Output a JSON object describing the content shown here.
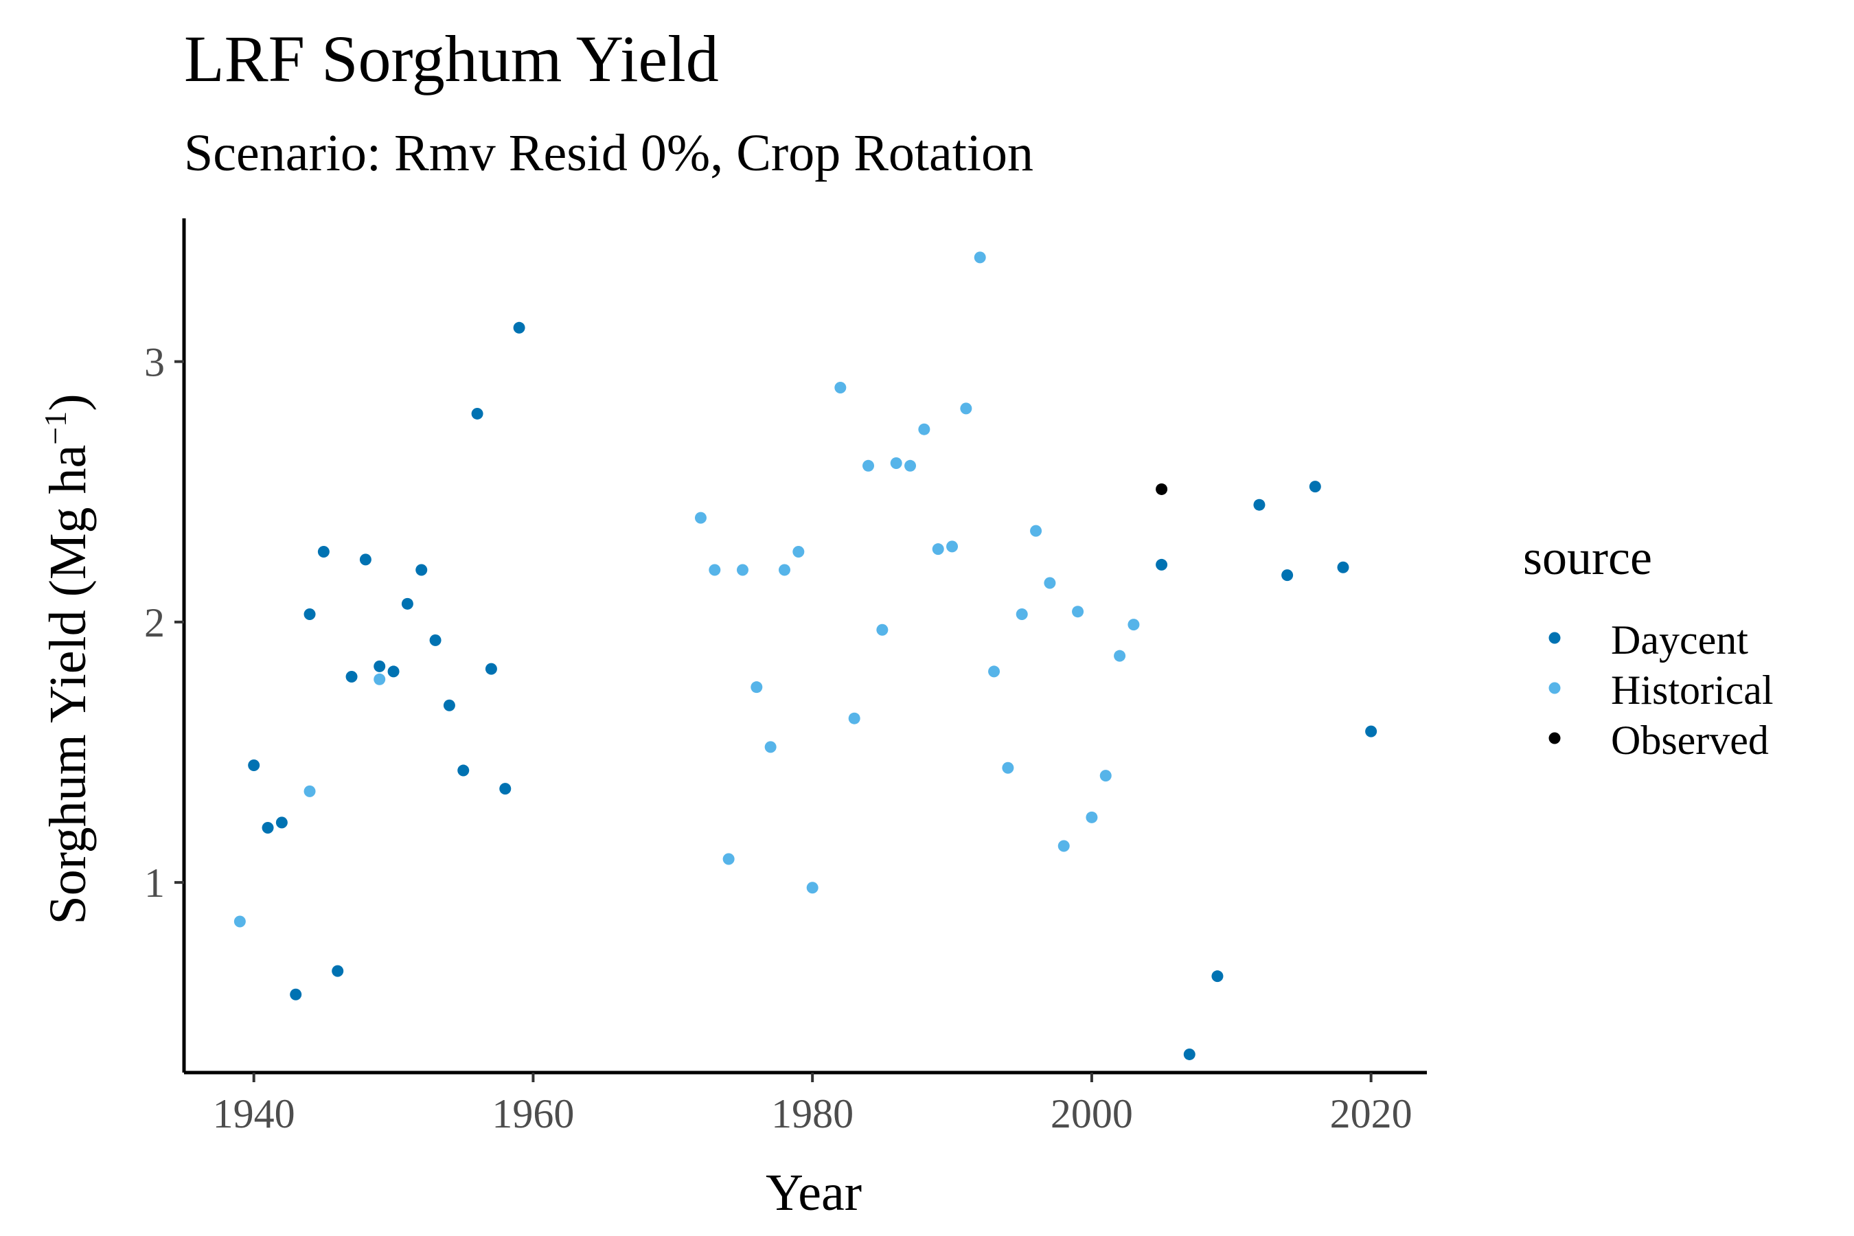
{
  "chart_data": {
    "type": "scatter",
    "title": "LRF Sorghum Yield",
    "subtitle": "Scenario: Rmv Resid 0%, Crop Rotation",
    "xlabel": "Year",
    "ylabel_main": "Sorghum Yield (Mg ha",
    "ylabel_sup": "−1",
    "ylabel_end": ")",
    "xlim": [
      1935,
      2024
    ],
    "ylim": [
      0.27,
      3.55
    ],
    "x_ticks": [
      1940,
      1960,
      1980,
      2000,
      2020
    ],
    "y_ticks": [
      1,
      2,
      3
    ],
    "grid": false,
    "legend": {
      "title": "source",
      "position": "right"
    },
    "series": [
      {
        "name": "Daycent",
        "color": "#0072b2",
        "points": [
          [
            1940,
            1.45
          ],
          [
            1941,
            1.21
          ],
          [
            1942,
            1.23
          ],
          [
            1943,
            0.57
          ],
          [
            1944,
            2.03
          ],
          [
            1945,
            2.27
          ],
          [
            1946,
            0.66
          ],
          [
            1947,
            1.79
          ],
          [
            1948,
            2.24
          ],
          [
            1949,
            1.83
          ],
          [
            1950,
            1.81
          ],
          [
            1951,
            2.07
          ],
          [
            1952,
            2.2
          ],
          [
            1953,
            1.93
          ],
          [
            1954,
            1.68
          ],
          [
            1955,
            1.43
          ],
          [
            1956,
            2.8
          ],
          [
            1957,
            1.82
          ],
          [
            1958,
            1.36
          ],
          [
            1959,
            3.13
          ],
          [
            2005,
            2.22
          ],
          [
            2007,
            0.34
          ],
          [
            2009,
            0.64
          ],
          [
            2012,
            2.45
          ],
          [
            2014,
            2.18
          ],
          [
            2016,
            2.52
          ],
          [
            2018,
            2.21
          ],
          [
            2020,
            1.58
          ]
        ]
      },
      {
        "name": "Historical",
        "color": "#56b4e9",
        "points": [
          [
            1939,
            0.85
          ],
          [
            1944,
            1.35
          ],
          [
            1949,
            1.78
          ],
          [
            1972,
            2.4
          ],
          [
            1973,
            2.2
          ],
          [
            1974,
            1.09
          ],
          [
            1975,
            2.2
          ],
          [
            1976,
            1.75
          ],
          [
            1977,
            1.52
          ],
          [
            1978,
            2.2
          ],
          [
            1979,
            2.27
          ],
          [
            1980,
            0.98
          ],
          [
            1982,
            2.9
          ],
          [
            1983,
            1.63
          ],
          [
            1984,
            2.6
          ],
          [
            1985,
            1.97
          ],
          [
            1986,
            2.61
          ],
          [
            1987,
            2.6
          ],
          [
            1988,
            2.74
          ],
          [
            1989,
            2.28
          ],
          [
            1990,
            2.29
          ],
          [
            1991,
            2.82
          ],
          [
            1992,
            3.4
          ],
          [
            1993,
            1.81
          ],
          [
            1994,
            1.44
          ],
          [
            1995,
            2.03
          ],
          [
            1996,
            2.35
          ],
          [
            1997,
            2.15
          ],
          [
            1998,
            1.14
          ],
          [
            1999,
            2.04
          ],
          [
            2000,
            1.25
          ],
          [
            2001,
            1.41
          ],
          [
            2002,
            1.87
          ],
          [
            2003,
            1.99
          ]
        ]
      },
      {
        "name": "Observed",
        "color": "#000000",
        "points": [
          [
            2005,
            2.51
          ]
        ]
      }
    ]
  }
}
